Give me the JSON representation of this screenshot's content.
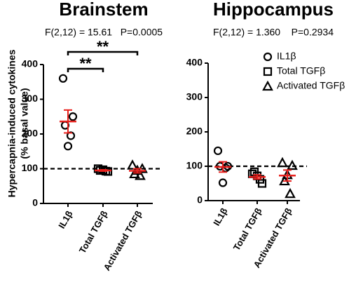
{
  "chart_data": [
    {
      "type": "dot",
      "title": "Brainstem",
      "subtitle": "F(2,12) = 15.61   P=0.0005",
      "ylabel": [
        "Hypercapnia-induced cytokines",
        "(% basal value)"
      ],
      "categories": [
        "IL1β",
        "Total TGFβ",
        "Activated TGFβ"
      ],
      "markers": [
        "circle",
        "square",
        "triangle"
      ],
      "values": [
        [
          360,
          250,
          225,
          195,
          165
        ],
        [
          100,
          92,
          95,
          93,
          97
        ],
        [
          110,
          100,
          85,
          80,
          95
        ]
      ],
      "means": [
        236,
        95,
        94
      ],
      "sems": [
        33,
        2,
        6
      ],
      "mean_color": "#e8201c",
      "color": "#000000",
      "reference_line": 100,
      "ylim": [
        0,
        400
      ],
      "yticks": [
        0,
        100,
        200,
        300,
        400
      ],
      "annotations": [
        {
          "text": "**",
          "from": 0,
          "to": 2
        },
        {
          "text": "**",
          "from": 0,
          "to": 1
        }
      ]
    },
    {
      "type": "dot",
      "title": "Hippocampus",
      "subtitle": "F(2,12) = 1.360    P=0.2934",
      "categories": [
        "IL1β",
        "Total TGFβ",
        "Activated TGFβ"
      ],
      "markers": [
        "circle",
        "square",
        "triangle"
      ],
      "values": [
        [
          145,
          100,
          100,
          95,
          52
        ],
        [
          78,
          50,
          84,
          62,
          72
        ],
        [
          110,
          102,
          57,
          20,
          75
        ]
      ],
      "means": [
        98,
        69,
        73
      ],
      "sems": [
        15,
        6,
        16
      ],
      "mean_color": "#e8201c",
      "color": "#000000",
      "reference_line": 100,
      "ylim": [
        0,
        400
      ],
      "yticks": [
        0,
        100,
        200,
        300,
        400
      ],
      "legend": [
        "IL1β",
        "Total TGFβ",
        "Activated TGFβ"
      ]
    }
  ]
}
